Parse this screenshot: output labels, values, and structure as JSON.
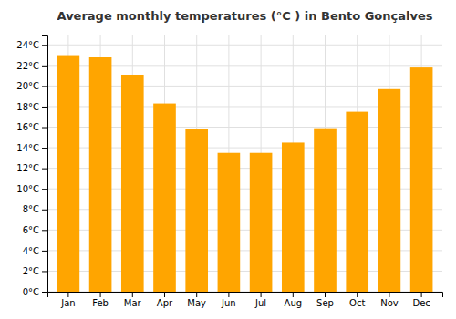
{
  "chart_data": {
    "type": "bar",
    "title": "Average monthly temperatures (°C ) in Bento Gonçalves",
    "categories": [
      "Jan",
      "Feb",
      "Mar",
      "Apr",
      "May",
      "Jun",
      "Jul",
      "Aug",
      "Sep",
      "Oct",
      "Nov",
      "Dec"
    ],
    "values": [
      23.0,
      22.8,
      21.1,
      18.3,
      15.8,
      13.5,
      13.5,
      14.5,
      15.9,
      17.5,
      19.7,
      21.8
    ],
    "color": "#FFA500",
    "ylim": [
      0,
      25
    ],
    "yticks": [
      {
        "value": 0,
        "label": "0°C"
      },
      {
        "value": 2,
        "label": "2°C"
      },
      {
        "value": 4,
        "label": "4°C"
      },
      {
        "value": 6,
        "label": "6°C"
      },
      {
        "value": 8,
        "label": "8°C"
      },
      {
        "value": 10,
        "label": "10°C"
      },
      {
        "value": 12,
        "label": "12°C"
      },
      {
        "value": 14,
        "label": "14°C"
      },
      {
        "value": 16,
        "label": "16°C"
      },
      {
        "value": 18,
        "label": "18°C"
      },
      {
        "value": 20,
        "label": "20°C"
      },
      {
        "value": 22,
        "label": "22°C"
      },
      {
        "value": 24,
        "label": "24°C"
      }
    ],
    "grid": true
  }
}
